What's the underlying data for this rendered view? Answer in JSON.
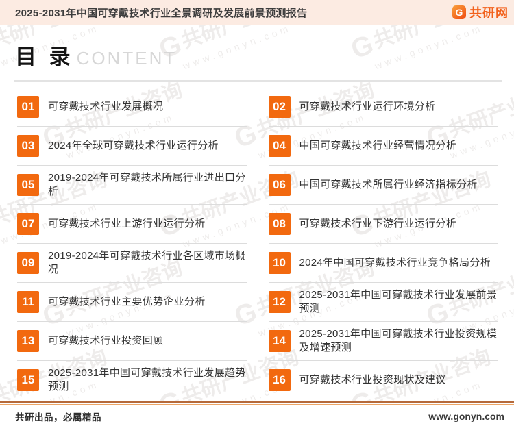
{
  "header": {
    "title": "2025-2031年中国可穿戴技术行业全景调研及发展前景预测报告",
    "logo_icon": "G",
    "logo_text": "共研网"
  },
  "heading": {
    "title_cn": "目 录",
    "title_en": "CONTENT"
  },
  "toc": {
    "left": [
      {
        "num": "01",
        "title": "可穿戴技术行业发展概况"
      },
      {
        "num": "03",
        "title": "2024年全球可穿戴技术行业运行分析"
      },
      {
        "num": "05",
        "title": "2019-2024年可穿戴技术所属行业进出口分析"
      },
      {
        "num": "07",
        "title": "可穿戴技术行业上游行业运行分析"
      },
      {
        "num": "09",
        "title": "2019-2024年可穿戴技术行业各区域市场概况"
      },
      {
        "num": "11",
        "title": "可穿戴技术行业主要优势企业分析"
      },
      {
        "num": "13",
        "title": "可穿戴技术行业投资回顾"
      },
      {
        "num": "15",
        "title": "2025-2031年中国可穿戴技术行业发展趋势预测"
      }
    ],
    "right": [
      {
        "num": "02",
        "title": "可穿戴技术行业运行环境分析"
      },
      {
        "num": "04",
        "title": "中国可穿戴技术行业经营情况分析"
      },
      {
        "num": "06",
        "title": "中国可穿戴技术所属行业经济指标分析"
      },
      {
        "num": "08",
        "title": "可穿戴技术行业下游行业运行分析"
      },
      {
        "num": "10",
        "title": "2024年中国可穿戴技术行业竞争格局分析"
      },
      {
        "num": "12",
        "title": "2025-2031年中国可穿戴技术行业发展前景预测"
      },
      {
        "num": "14",
        "title": "2025-2031年中国可穿戴技术行业投资规模及增速预测"
      },
      {
        "num": "16",
        "title": "可穿戴技术行业投资现状及建议"
      }
    ]
  },
  "footer": {
    "left_text": "共研出品，必属精品",
    "right_text": "www.gonyn.com"
  },
  "watermark": {
    "g": "G",
    "brand": "共研产业咨询",
    "url": "www.gonyn.com"
  },
  "colors": {
    "accent_orange": "#f2690f",
    "header_bg": "#fcebe2",
    "logo_orange": "#f2601a",
    "divider_gray": "#dcdcdc",
    "footer_rule_dark": "#b5693a",
    "footer_rule_light": "#eda667"
  }
}
